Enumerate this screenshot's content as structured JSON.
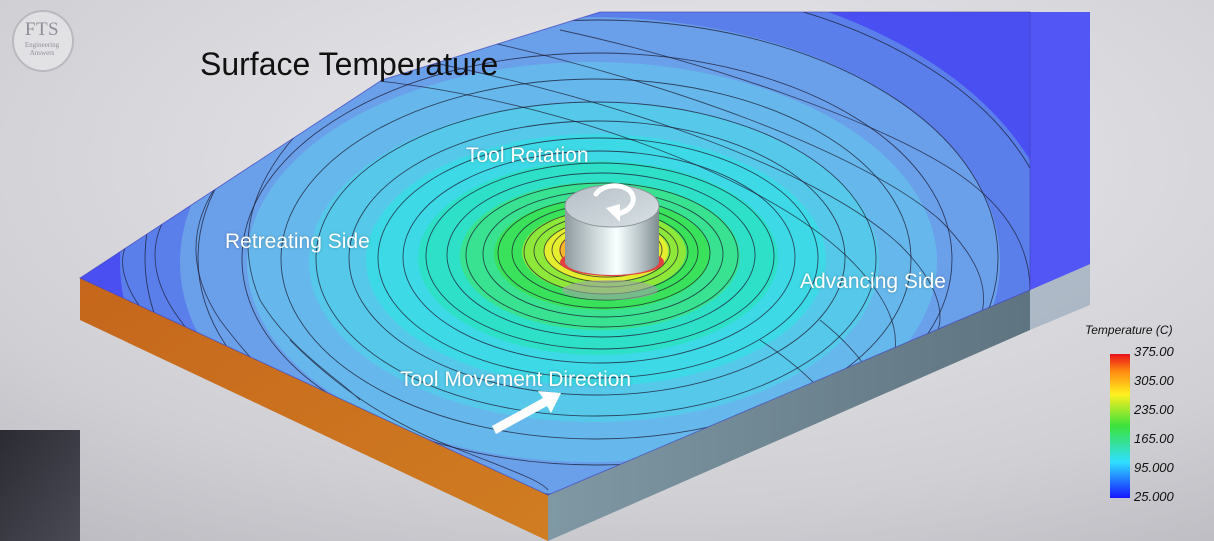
{
  "logo": {
    "main": "FTS",
    "line1": "Engineering",
    "line2": "Answers"
  },
  "title": "Surface Temperature",
  "labels": {
    "rotation": "Tool Rotation",
    "retreating": "Retreating Side",
    "advancing": "Advancing Side",
    "movement": "Tool Movement Direction"
  },
  "legend": {
    "title": "Temperature (C)",
    "ticks": [
      "375.00",
      "305.00",
      "235.00",
      "165.00",
      "95.000",
      "25.000"
    ]
  },
  "colors": {
    "cold": "#4a4ff2",
    "cool": "#66b8ec",
    "mid": "#2fd8e8",
    "warm": "#39e25a",
    "hot": "#fff02c",
    "hottest": "#e81c1c",
    "side_orange": "#c96a1c",
    "side_grey": "#6f8794",
    "floor": "#d2d2d6"
  },
  "icons": {
    "rotation_arrow": "rotation-arrow-icon",
    "movement_arrow": "movement-arrow-icon"
  }
}
